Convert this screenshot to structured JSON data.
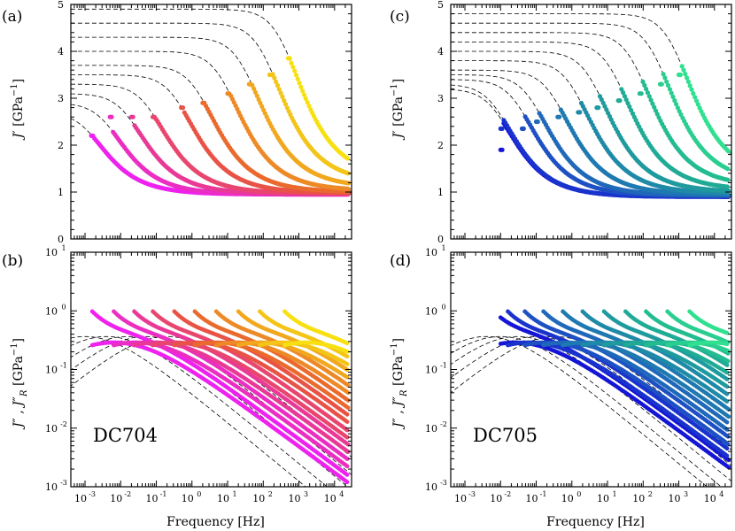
{
  "panel_labels": [
    "(a)",
    "(b)",
    "(c)",
    "(d)"
  ],
  "sample_labels": [
    "DC704",
    "DC705"
  ],
  "chart_data": [
    {
      "panel": "(a)",
      "type": "scatter",
      "sample": "DC704",
      "title": "",
      "xlabel": "",
      "ylabel": "J′ [GPa⁻¹]",
      "xscale": "log",
      "xlim": [
        0.0004,
        30000
      ],
      "ylim": [
        0,
        5
      ],
      "yticks": [
        "0",
        "1",
        "2",
        "3",
        "4",
        "5"
      ],
      "color_scale": [
        "#ee22ee",
        "#e83c8c",
        "#e85a32",
        "#f0a020",
        "#f8e010"
      ],
      "series": [
        {
          "start_freq": 0.0015,
          "start_value": 2.2,
          "high_freq_limit": 0.95,
          "model_low_freq_value": 2.7
        },
        {
          "start_freq": 0.005,
          "start_value": 2.6,
          "high_freq_limit": 0.95,
          "model_low_freq_value": 2.9
        },
        {
          "start_freq": 0.02,
          "start_value": 2.6,
          "high_freq_limit": 0.96,
          "model_low_freq_value": 3.1
        },
        {
          "start_freq": 0.08,
          "start_value": 2.6,
          "high_freq_limit": 0.97,
          "model_low_freq_value": 3.3
        },
        {
          "start_freq": 0.5,
          "start_value": 2.8,
          "high_freq_limit": 0.98,
          "model_low_freq_value": 3.5
        },
        {
          "start_freq": 2,
          "start_value": 2.9,
          "high_freq_limit": 1.0,
          "model_low_freq_value": 3.7
        },
        {
          "start_freq": 10,
          "start_value": 3.1,
          "high_freq_limit": 1.03,
          "model_low_freq_value": 4.0
        },
        {
          "start_freq": 40,
          "start_value": 3.3,
          "high_freq_limit": 1.1,
          "model_low_freq_value": 4.3
        },
        {
          "start_freq": 150,
          "start_value": 3.5,
          "high_freq_limit": 1.2,
          "model_low_freq_value": 4.6
        },
        {
          "start_freq": 500,
          "start_value": 3.85,
          "high_freq_limit": 1.3,
          "model_low_freq_value": 4.9
        }
      ]
    },
    {
      "panel": "(b)",
      "type": "scatter",
      "sample": "DC704",
      "title": "",
      "xlabel": "Frequency [Hz]",
      "ylabel": "J″ , J″_R [GPa⁻¹]",
      "xscale": "log",
      "yscale": "log",
      "xlim": [
        0.0004,
        30000
      ],
      "ylim": [
        0.001,
        10
      ],
      "xtick_exponents": [
        -3,
        -2,
        -1,
        0,
        1,
        2,
        3,
        4
      ],
      "ytick_exponents": [
        -3,
        -2,
        -1,
        0,
        1
      ],
      "color_scale": [
        "#ee22ee",
        "#e83c8c",
        "#e85a32",
        "#f0a020",
        "#f8e010"
      ],
      "series_peak_freqs": [
        0.002,
        0.008,
        0.03,
        0.1,
        0.4,
        1.5,
        6,
        25,
        100,
        500
      ],
      "peak_value": 0.7
    },
    {
      "panel": "(c)",
      "type": "scatter",
      "sample": "DC705",
      "title": "",
      "xlabel": "",
      "ylabel": "J′ [GPa⁻¹]",
      "xscale": "log",
      "xlim": [
        0.0004,
        30000
      ],
      "ylim": [
        0,
        5
      ],
      "yticks": [
        "0",
        "1",
        "2",
        "3",
        "4",
        "5"
      ],
      "color_scale": [
        "#1515d5",
        "#1f5fbf",
        "#1f8aa8",
        "#1fb390",
        "#30e090"
      ],
      "series": [
        {
          "start_freq": 0.01,
          "start_value": 1.9,
          "high_freq_limit": 0.9,
          "model_low_freq_value": 3.2
        },
        {
          "start_freq": 0.01,
          "start_value": 2.35,
          "high_freq_limit": 0.9,
          "model_low_freq_value": 3.3
        },
        {
          "start_freq": 0.04,
          "start_value": 2.35,
          "high_freq_limit": 0.92,
          "model_low_freq_value": 3.4
        },
        {
          "start_freq": 0.1,
          "start_value": 2.5,
          "high_freq_limit": 0.93,
          "model_low_freq_value": 3.5
        },
        {
          "start_freq": 0.4,
          "start_value": 2.6,
          "high_freq_limit": 0.95,
          "model_low_freq_value": 3.6
        },
        {
          "start_freq": 1.5,
          "start_value": 2.7,
          "high_freq_limit": 0.97,
          "model_low_freq_value": 3.8
        },
        {
          "start_freq": 5,
          "start_value": 2.8,
          "high_freq_limit": 1.0,
          "model_low_freq_value": 4.0
        },
        {
          "start_freq": 20,
          "start_value": 2.95,
          "high_freq_limit": 1.05,
          "model_low_freq_value": 4.2
        },
        {
          "start_freq": 80,
          "start_value": 3.1,
          "high_freq_limit": 1.12,
          "model_low_freq_value": 4.4
        },
        {
          "start_freq": 300,
          "start_value": 3.3,
          "high_freq_limit": 1.2,
          "model_low_freq_value": 4.6
        },
        {
          "start_freq": 1000,
          "start_value": 3.5,
          "high_freq_limit": 1.3,
          "model_low_freq_value": 4.8
        }
      ]
    },
    {
      "panel": "(d)",
      "type": "scatter",
      "sample": "DC705",
      "title": "",
      "xlabel": "Frequency [Hz]",
      "ylabel": "J″ , J″_R [GPa⁻¹]",
      "xscale": "log",
      "yscale": "log",
      "xlim": [
        0.0004,
        30000
      ],
      "ylim": [
        0.001,
        10
      ],
      "xtick_exponents": [
        -3,
        -2,
        -1,
        0,
        1,
        2,
        3,
        4
      ],
      "ytick_exponents": [
        -3,
        -2,
        -1,
        0,
        1
      ],
      "color_scale": [
        "#1515d5",
        "#1f5fbf",
        "#1f8aa8",
        "#1fb390",
        "#30e090"
      ],
      "series_peak_freqs": [
        0.008,
        0.02,
        0.06,
        0.2,
        0.7,
        2.5,
        10,
        40,
        150,
        600,
        2500
      ],
      "peak_value": 0.7
    }
  ]
}
